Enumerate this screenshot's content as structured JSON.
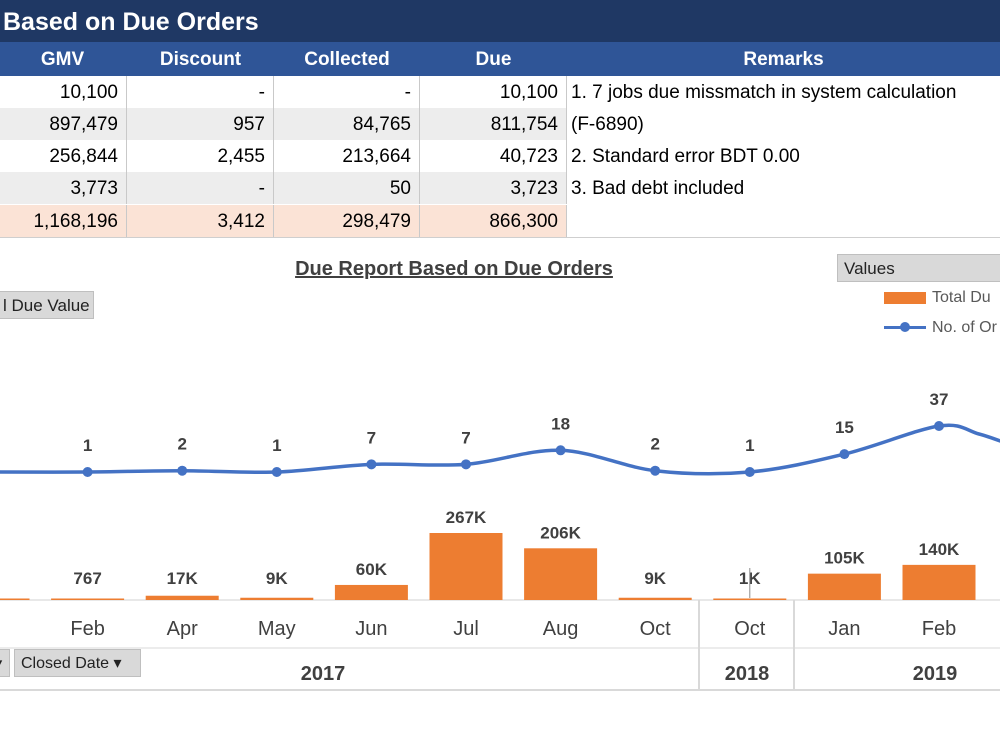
{
  "report_title": "Based on Due Orders",
  "table": {
    "headers": {
      "gmv": "GMV",
      "discount": "Discount",
      "collected": "Collected",
      "due": "Due",
      "remarks": "Remarks"
    },
    "rows": [
      {
        "gmv": "10,100",
        "discount": "-",
        "collected": "-",
        "due": "10,100"
      },
      {
        "gmv": "897,479",
        "discount": "957",
        "collected": "84,765",
        "due": "811,754"
      },
      {
        "gmv": "256,844",
        "discount": "2,455",
        "collected": "213,664",
        "due": "40,723"
      },
      {
        "gmv": "3,773",
        "discount": "-",
        "collected": "50",
        "due": "3,723"
      }
    ],
    "total": {
      "gmv": "1,168,196",
      "discount": "3,412",
      "collected": "298,479",
      "due": "866,300"
    },
    "remarks": [
      "1. 7 jobs due missmatch in system calculation",
      "(F-6890)",
      "2. Standard error BDT 0.00",
      "3. Bad debt included"
    ]
  },
  "pivot": {
    "values_button": "Values",
    "due_value_button": "l Due Value",
    "closed_date_button": "Closed Date",
    "colors": {
      "bar": "#ed7d31",
      "line": "#4472c4",
      "header": "#1f3864",
      "subheader": "#2f5597"
    }
  },
  "chart_data": {
    "type": "bar",
    "title": "Due Report Based on Due Orders",
    "categories": [
      "Jan",
      "Feb",
      "Apr",
      "May",
      "Jun",
      "Jul",
      "Aug",
      "Oct",
      "Oct",
      "Jan",
      "Feb"
    ],
    "category_labels": [
      "n",
      "Feb",
      "Apr",
      "May",
      "Jun",
      "Jul",
      "Aug",
      "Oct",
      "Oct",
      "Jan",
      "Feb"
    ],
    "years": [
      {
        "label": "2017",
        "from": 0,
        "to": 7
      },
      {
        "label": "2018",
        "from": 8,
        "to": 8
      },
      {
        "label": "2019",
        "from": 9,
        "to": 10
      }
    ],
    "series": [
      {
        "name": "Total Due Value",
        "type": "bar",
        "values": [
          3000,
          767,
          17000,
          9000,
          60000,
          267000,
          206000,
          9000,
          1000,
          105000,
          140000
        ],
        "labels": [
          "K",
          "767",
          "17K",
          "9K",
          "60K",
          "267K",
          "206K",
          "9K",
          "1K",
          "105K",
          "140K"
        ]
      },
      {
        "name": "No. of Orders",
        "type": "line",
        "values": [
          1,
          1,
          2,
          1,
          7,
          7,
          18,
          2,
          1,
          15,
          37
        ],
        "labels": [
          "",
          "1",
          "2",
          "1",
          "7",
          "7",
          "18",
          "2",
          "1",
          "15",
          "37"
        ]
      }
    ],
    "legend": {
      "position": "top-right",
      "entries": [
        "Total Du",
        "No. of Or"
      ]
    }
  }
}
